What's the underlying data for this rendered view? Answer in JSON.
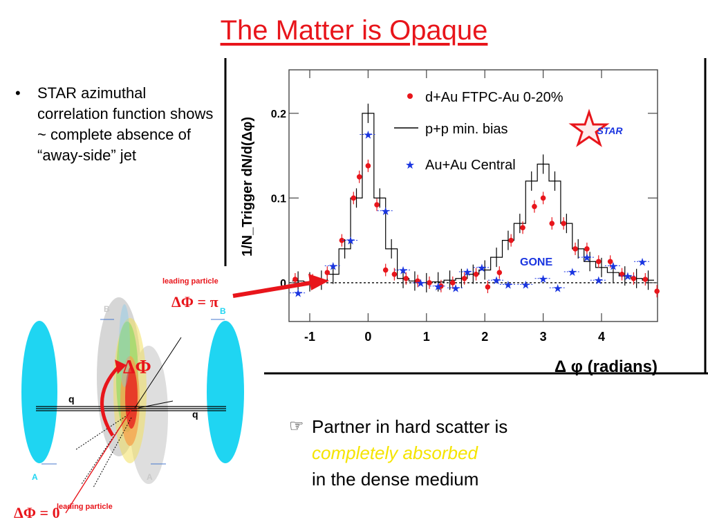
{
  "slide": {
    "title": "The Matter is Opaque",
    "bullet_marker": "•",
    "bullet_text": "STAR azimuthal correlation function shows ~ complete absence of “away-side” jet",
    "note_icon": "pointing-hand-icon",
    "note_line1": "Partner in hard scatter is",
    "note_line2": "completely absorbed",
    "note_line3": "in the dense medium",
    "highlight_color": "#f5e400",
    "title_color": "#e8151b"
  },
  "diagram": {
    "label_leading_top": "leading particle",
    "label_dphi_pi": "ΔΦ = π",
    "label_dphi_big": "ΔΦ",
    "label_dphi_zero": "ΔΦ = 0",
    "label_leading_bottom": "leading particle",
    "label_q_left": "q",
    "label_q_right": "q",
    "label_A_left": "A",
    "label_A_right": "A",
    "label_B_left": "B",
    "label_B_right": "B",
    "nucleus_color": "#1fd5f2",
    "arrow_color": "#e8151b"
  },
  "chart_data": {
    "type": "line",
    "xlabel": "Δ φ (radians)",
    "ylabel": "1/N_Trigger dN/d(Δφ)",
    "xlim": [
      -1.3,
      5.0
    ],
    "ylim": [
      -0.045,
      0.255
    ],
    "x_ticks": [
      -1,
      0,
      1,
      2,
      3,
      4
    ],
    "y_ticks": [
      0,
      0.1,
      0.2
    ],
    "y_tick_labels": [
      "0",
      "0.1",
      "0.2"
    ],
    "legend_position": "top-right",
    "legend": [
      "d+Au FTPC-Au 0-20%",
      "p+p min. bias",
      "Au+Au Central"
    ],
    "logo_text": "STAR",
    "annotation": "GONE",
    "series": [
      {
        "name": "p+p min. bias",
        "style": "step",
        "color": "#000000",
        "x": [
          -1.2,
          -1.0,
          -0.8,
          -0.6,
          -0.4,
          -0.2,
          0.0,
          0.2,
          0.4,
          0.6,
          0.8,
          1.0,
          1.2,
          1.4,
          1.6,
          1.8,
          2.0,
          2.2,
          2.4,
          2.6,
          2.8,
          3.0,
          3.2,
          3.4,
          3.6,
          3.8,
          4.0,
          4.2,
          4.4,
          4.6,
          4.8
        ],
        "y": [
          0.002,
          0.001,
          0.003,
          0.01,
          0.04,
          0.1,
          0.2,
          0.1,
          0.04,
          0.005,
          0.002,
          0.0,
          0.001,
          0.003,
          0.005,
          0.01,
          0.015,
          0.03,
          0.05,
          0.07,
          0.12,
          0.14,
          0.12,
          0.07,
          0.04,
          0.025,
          0.018,
          0.012,
          0.008,
          0.005,
          0.003
        ]
      },
      {
        "name": "d+Au FTPC-Au 0-20%",
        "style": "points",
        "color": "#e8151b",
        "x": [
          -1.25,
          -0.95,
          -0.7,
          -0.45,
          -0.25,
          -0.15,
          0.0,
          0.15,
          0.3,
          0.45,
          0.65,
          0.85,
          1.05,
          1.25,
          1.45,
          1.65,
          1.85,
          2.05,
          2.25,
          2.45,
          2.65,
          2.85,
          3.0,
          3.15,
          3.35,
          3.55,
          3.75,
          3.95,
          4.15,
          4.35,
          4.55,
          4.75,
          4.95
        ],
        "y": [
          0.004,
          0.003,
          0.012,
          0.05,
          0.1,
          0.125,
          0.138,
          0.092,
          0.015,
          0.01,
          0.005,
          0.002,
          0.0,
          -0.004,
          0.0,
          0.005,
          0.01,
          -0.005,
          0.012,
          0.05,
          0.065,
          0.09,
          0.1,
          0.07,
          0.07,
          0.04,
          0.04,
          0.025,
          0.025,
          0.01,
          0.005,
          0.004,
          -0.01
        ]
      },
      {
        "name": "Au+Au Central",
        "style": "stars",
        "color": "#1a35e0",
        "x": [
          -1.2,
          -0.6,
          -0.3,
          0.0,
          0.3,
          0.6,
          0.9,
          1.2,
          1.5,
          1.7,
          1.95,
          2.2,
          2.4,
          2.7,
          3.0,
          3.25,
          3.5,
          3.75,
          3.95,
          4.2,
          4.45,
          4.7
        ],
        "y": [
          -0.012,
          0.02,
          0.05,
          0.175,
          0.085,
          0.015,
          0.0,
          -0.004,
          -0.006,
          0.013,
          0.018,
          0.003,
          -0.002,
          -0.002,
          0.005,
          -0.006,
          0.013,
          0.03,
          0.003,
          0.02,
          0.008,
          0.025
        ]
      }
    ]
  }
}
